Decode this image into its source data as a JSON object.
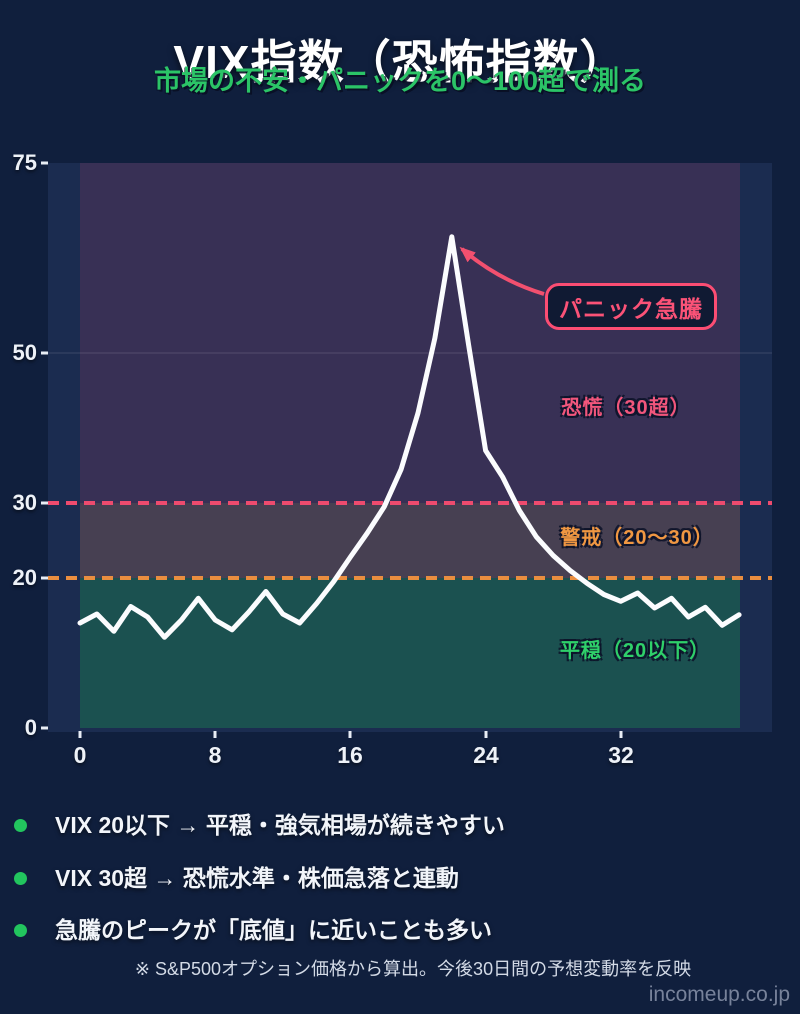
{
  "header": {
    "title": "VIX指数（恐怖指数）",
    "subtitle": "市場の不安・パニックを0〜100超で測る"
  },
  "chart_data": {
    "type": "line",
    "title": "VIX指数（恐怖指数）",
    "xlabel": "",
    "ylabel": "",
    "x_ticks": [
      "0",
      "8",
      "16",
      "24",
      "32"
    ],
    "y_ticks": [
      "75",
      "50",
      "30",
      "20",
      "0"
    ],
    "xlim": [
      0,
      39
    ],
    "ylim": [
      0,
      76
    ],
    "grid": "faint horizontal line at 50",
    "legend_position": "none",
    "zones": [
      {
        "label": "恐慌（30超）",
        "from": 30,
        "to": 76,
        "fill": "#383055",
        "label_color": "#f2567c"
      },
      {
        "label": "警戒（20〜30）",
        "from": 20,
        "to": 30,
        "fill": "#474052",
        "label_color": "#f09742"
      },
      {
        "label": "平穏（20以下）",
        "from": 0,
        "to": 20,
        "fill": "#1b5150",
        "label_color": "#2fd06a"
      }
    ],
    "thresholds": [
      {
        "value": 30,
        "color": "#ee4b6e",
        "style": "dashed"
      },
      {
        "value": 20,
        "color": "#ea8e3f",
        "style": "dashed"
      }
    ],
    "annotation": {
      "label": "パニック急騰",
      "at_x": 22,
      "at_y": 65.5,
      "color": "#fb4d73"
    },
    "series": [
      {
        "name": "VIX",
        "color": "#ffffff",
        "points": [
          [
            0,
            14.0
          ],
          [
            1,
            15.2
          ],
          [
            2,
            12.9
          ],
          [
            3,
            16.2
          ],
          [
            4,
            14.8
          ],
          [
            5,
            12.1
          ],
          [
            6,
            14.4
          ],
          [
            7,
            17.3
          ],
          [
            8,
            14.4
          ],
          [
            9,
            13.1
          ],
          [
            10,
            15.5
          ],
          [
            11,
            18.2
          ],
          [
            12,
            15.2
          ],
          [
            13,
            14.0
          ],
          [
            14,
            16.6
          ],
          [
            15,
            19.5
          ],
          [
            16,
            22.8
          ],
          [
            17,
            26.0
          ],
          [
            18,
            29.5
          ],
          [
            19,
            34.5
          ],
          [
            20,
            42.0
          ],
          [
            21,
            52.0
          ],
          [
            22,
            65.5
          ],
          [
            23,
            51.0
          ],
          [
            24,
            37.0
          ],
          [
            25,
            33.5
          ],
          [
            26,
            29.0
          ],
          [
            27,
            25.5
          ],
          [
            28,
            23.0
          ],
          [
            29,
            21.0
          ],
          [
            30,
            19.3
          ],
          [
            31,
            17.8
          ],
          [
            32,
            16.9
          ],
          [
            33,
            18.0
          ],
          [
            34,
            16.0
          ],
          [
            35,
            17.3
          ],
          [
            36,
            14.8
          ],
          [
            37,
            16.1
          ],
          [
            38,
            13.7
          ],
          [
            39,
            15.1
          ]
        ]
      }
    ]
  },
  "bullets": [
    "VIX 20以下 → 平穏・強気相場が続きやすい",
    "VIX 30超 → 恐慌水準・株価急落と連動",
    "急騰のピークが「底値」に近いことも多い"
  ],
  "footnote": "※ S&P500オプション価格から算出。今後30日間の予想変動率を反映",
  "footer": "incomeup.co.jp",
  "colors": {
    "background": "#101f3d",
    "plot_background": "#1b2c50",
    "accent_pink": "#fb4d73",
    "accent_orange": "#ea8e3f",
    "accent_green": "#22c55e",
    "line": "#ffffff"
  }
}
